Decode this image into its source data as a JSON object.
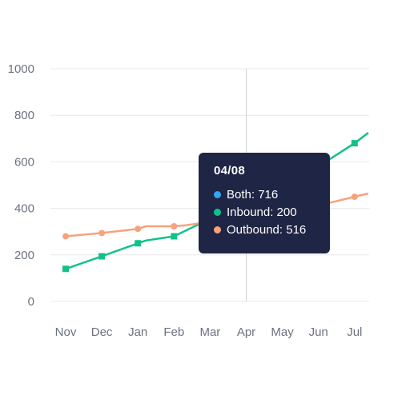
{
  "chart_data": {
    "type": "line",
    "categories": [
      "Nov",
      "Dec",
      "Jan",
      "Feb",
      "Mar",
      "Apr",
      "May",
      "Jun",
      "Jul"
    ],
    "ylim": [
      0,
      1000
    ],
    "yticks": [
      0,
      200,
      400,
      600,
      800,
      1000
    ],
    "grid": true,
    "series": [
      {
        "name": "Inbound",
        "color": "#10c28a",
        "marker": "square",
        "points": [
          {
            "x": "Nov",
            "y": 140,
            "marker": true
          },
          {
            "x": "Dec",
            "y": 194,
            "marker": true
          },
          {
            "x": "Jan",
            "y": 250,
            "marker": true
          },
          {
            "x": "Jan",
            "y": 262,
            "marker": false
          },
          {
            "x": "Feb",
            "y": 280,
            "marker": true
          },
          {
            "x": "Jun",
            "y": 580,
            "marker": false
          },
          {
            "x": "Jul",
            "y": 680,
            "marker": true
          },
          {
            "x": "Jul",
            "y": 725,
            "marker": false
          }
        ]
      },
      {
        "name": "Outbound",
        "color": "#f7a27c",
        "marker": "circle",
        "points": [
          {
            "x": "Nov",
            "y": 280,
            "marker": true
          },
          {
            "x": "Dec",
            "y": 294,
            "marker": true
          },
          {
            "x": "Jan",
            "y": 312,
            "marker": true
          },
          {
            "x": "Jan",
            "y": 323,
            "marker": false
          },
          {
            "x": "Feb",
            "y": 323,
            "marker": true
          },
          {
            "x": "Feb",
            "y": 328,
            "marker": false
          },
          {
            "x": "Jun",
            "y": 412,
            "marker": false
          },
          {
            "x": "Jul",
            "y": 450,
            "marker": true
          },
          {
            "x": "Jul",
            "y": 464,
            "marker": false
          }
        ]
      }
    ],
    "crosshair_x": "Apr"
  },
  "tooltip": {
    "title": "04/08",
    "rows": [
      {
        "color": "#2fa8f5",
        "label": "Both: 716"
      },
      {
        "color": "#10c28a",
        "label": "Inbound: 200"
      },
      {
        "color": "#f7a27c",
        "label": "Outbound: 516"
      }
    ]
  }
}
